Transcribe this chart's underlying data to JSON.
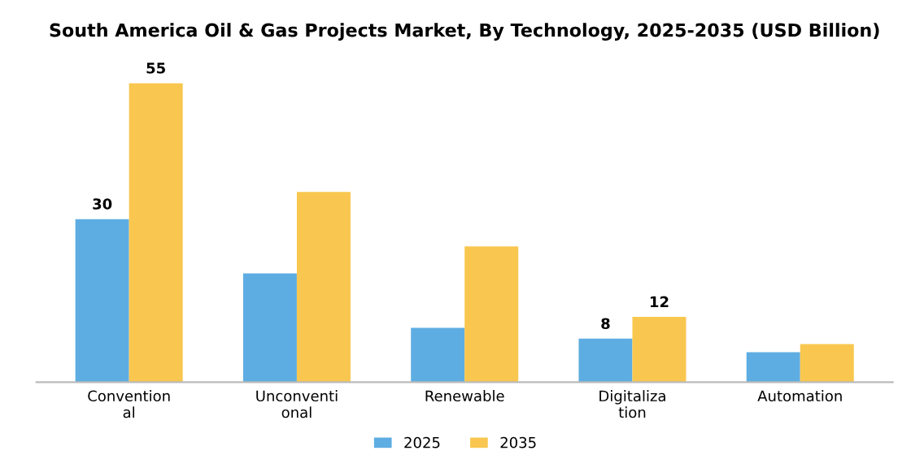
{
  "chart_data": {
    "type": "bar",
    "title": "South America Oil & Gas Projects Market, By Technology, 2025-2035 (USD Billion)",
    "categories": [
      "Convention\nal",
      "Unconventi\nonal",
      "Renewable",
      "Digitaliza\ntion",
      "Automation"
    ],
    "series": [
      {
        "name": "2025",
        "color": "#5dade2",
        "values": [
          30,
          20,
          10,
          8,
          5.5
        ],
        "value_labels": [
          "30",
          null,
          null,
          "8",
          null
        ]
      },
      {
        "name": "2035",
        "color": "#f9c74f",
        "values": [
          55,
          35,
          25,
          12,
          7
        ],
        "value_labels": [
          "55",
          null,
          null,
          "12",
          null
        ]
      }
    ],
    "legend": "bottom",
    "grid": false
  }
}
